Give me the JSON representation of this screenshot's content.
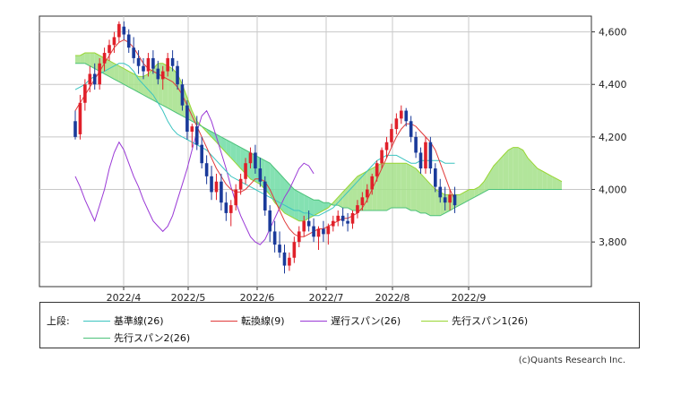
{
  "chart_data": {
    "type": "candlestick-ichimoku",
    "y_ticks": [
      3800,
      4000,
      4200,
      4400,
      4600
    ],
    "y_tick_labels": [
      "3,800",
      "4,000",
      "4,200",
      "4,400",
      "4,600"
    ],
    "x_tick_labels": [
      "2022/4",
      "2022/5",
      "2022/6",
      "2022/7",
      "2022/8",
      "2022/9"
    ],
    "ylim": [
      3630,
      4660
    ],
    "grid": true,
    "legend_prefix": "上段:",
    "legend": [
      {
        "label": "基準線(26)",
        "color": "#3cc4c0"
      },
      {
        "label": "転換線(9)",
        "color": "#e03a3a"
      },
      {
        "label": "遅行スパン(26)",
        "color": "#9a39d6"
      },
      {
        "label": "先行スパン1(26)",
        "color": "#99d633"
      },
      {
        "label": "先行スパン2(26)",
        "color": "#4cc27a"
      }
    ],
    "series_note": "Daily candles (values estimated from chart)",
    "candles": [
      [
        4260,
        4300,
        4190,
        4200
      ],
      [
        4210,
        4360,
        4190,
        4330
      ],
      [
        4330,
        4420,
        4300,
        4400
      ],
      [
        4400,
        4470,
        4370,
        4440
      ],
      [
        4440,
        4480,
        4380,
        4400
      ],
      [
        4400,
        4500,
        4380,
        4480
      ],
      [
        4480,
        4540,
        4450,
        4520
      ],
      [
        4520,
        4570,
        4490,
        4550
      ],
      [
        4550,
        4600,
        4520,
        4580
      ],
      [
        4580,
        4640,
        4560,
        4630
      ],
      [
        4620,
        4640,
        4570,
        4590
      ],
      [
        4590,
        4610,
        4520,
        4540
      ],
      [
        4540,
        4580,
        4480,
        4500
      ],
      [
        4500,
        4530,
        4440,
        4470
      ],
      [
        4470,
        4500,
        4420,
        4450
      ],
      [
        4450,
        4520,
        4430,
        4500
      ],
      [
        4500,
        4530,
        4440,
        4460
      ],
      [
        4460,
        4490,
        4400,
        4420
      ],
      [
        4420,
        4470,
        4380,
        4450
      ],
      [
        4450,
        4520,
        4430,
        4500
      ],
      [
        4500,
        4530,
        4450,
        4470
      ],
      [
        4470,
        4490,
        4380,
        4400
      ],
      [
        4400,
        4420,
        4300,
        4320
      ],
      [
        4320,
        4340,
        4190,
        4220
      ],
      [
        4220,
        4250,
        4160,
        4240
      ],
      [
        4240,
        4280,
        4150,
        4170
      ],
      [
        4170,
        4200,
        4080,
        4100
      ],
      [
        4100,
        4130,
        4020,
        4050
      ],
      [
        4050,
        4090,
        3960,
        3990
      ],
      [
        3990,
        4060,
        3960,
        4030
      ],
      [
        4030,
        4060,
        3920,
        3950
      ],
      [
        3950,
        3990,
        3880,
        3910
      ],
      [
        3910,
        3960,
        3860,
        3940
      ],
      [
        3940,
        4020,
        3920,
        4000
      ],
      [
        4000,
        4060,
        3980,
        4040
      ],
      [
        4040,
        4120,
        4020,
        4100
      ],
      [
        4100,
        4160,
        4080,
        4140
      ],
      [
        4140,
        4170,
        4060,
        4080
      ],
      [
        4080,
        4120,
        4010,
        4030
      ],
      [
        4030,
        4050,
        3900,
        3920
      ],
      [
        3920,
        3940,
        3800,
        3840
      ],
      [
        3840,
        3880,
        3760,
        3790
      ],
      [
        3790,
        3840,
        3740,
        3760
      ],
      [
        3760,
        3790,
        3680,
        3710
      ],
      [
        3710,
        3760,
        3690,
        3740
      ],
      [
        3740,
        3820,
        3720,
        3800
      ],
      [
        3800,
        3860,
        3780,
        3840
      ],
      [
        3840,
        3900,
        3820,
        3880
      ],
      [
        3880,
        3920,
        3840,
        3860
      ],
      [
        3860,
        3890,
        3800,
        3820
      ],
      [
        3820,
        3860,
        3770,
        3850
      ],
      [
        3850,
        3880,
        3800,
        3830
      ],
      [
        3830,
        3870,
        3790,
        3860
      ],
      [
        3860,
        3900,
        3840,
        3880
      ],
      [
        3880,
        3920,
        3860,
        3900
      ],
      [
        3900,
        3930,
        3860,
        3880
      ],
      [
        3880,
        3910,
        3840,
        3870
      ],
      [
        3870,
        3920,
        3850,
        3910
      ],
      [
        3910,
        3960,
        3890,
        3940
      ],
      [
        3940,
        3990,
        3920,
        3970
      ],
      [
        3970,
        4020,
        3950,
        4000
      ],
      [
        4000,
        4060,
        3980,
        4050
      ],
      [
        4050,
        4110,
        4030,
        4100
      ],
      [
        4100,
        4160,
        4080,
        4150
      ],
      [
        4150,
        4200,
        4120,
        4180
      ],
      [
        4180,
        4250,
        4160,
        4230
      ],
      [
        4230,
        4290,
        4210,
        4270
      ],
      [
        4270,
        4320,
        4250,
        4300
      ],
      [
        4300,
        4310,
        4240,
        4260
      ],
      [
        4260,
        4280,
        4180,
        4200
      ],
      [
        4200,
        4220,
        4120,
        4140
      ],
      [
        4140,
        4160,
        4060,
        4080
      ],
      [
        4080,
        4200,
        4060,
        4180
      ],
      [
        4180,
        4200,
        4060,
        4080
      ],
      [
        4080,
        4100,
        3990,
        4010
      ],
      [
        4010,
        4040,
        3950,
        3970
      ],
      [
        3970,
        4010,
        3920,
        3950
      ],
      [
        3950,
        4000,
        3920,
        3980
      ],
      [
        3980,
        4010,
        3910,
        3940
      ]
    ],
    "kijun": [
      4380,
      4390,
      4400,
      4420,
      4430,
      4440,
      4450,
      4460,
      4470,
      4480,
      4480,
      4470,
      4450,
      4420,
      4400,
      4380,
      4360,
      4330,
      4300,
      4260,
      4230,
      4210,
      4200,
      4190,
      4180,
      4170,
      4160,
      4150,
      4130,
      4110,
      4090,
      4070,
      4050,
      4040,
      4030,
      4020,
      4010,
      4000,
      3990,
      3980,
      3970,
      3960,
      3950,
      3940,
      3930,
      3920,
      3920,
      3910,
      3910,
      3900,
      3900,
      3910,
      3920,
      3930,
      3950,
      3970,
      3990,
      4010,
      4030,
      4050,
      4070,
      4090,
      4110,
      4120,
      4130,
      4130,
      4130,
      4120,
      4110,
      4100,
      4100,
      4110,
      4110,
      4110,
      4110,
      4110,
      4100,
      4100,
      4100
    ],
    "tenkan": [
      4300,
      4330,
      4360,
      4390,
      4420,
      4450,
      4480,
      4510,
      4540,
      4560,
      4570,
      4560,
      4540,
      4510,
      4480,
      4460,
      4450,
      4440,
      4430,
      4420,
      4410,
      4390,
      4360,
      4320,
      4280,
      4240,
      4200,
      4160,
      4120,
      4080,
      4050,
      4020,
      4000,
      3990,
      3990,
      4000,
      4020,
      4040,
      4040,
      4030,
      4000,
      3960,
      3920,
      3880,
      3850,
      3830,
      3820,
      3820,
      3830,
      3840,
      3850,
      3850,
      3860,
      3870,
      3880,
      3890,
      3890,
      3900,
      3910,
      3930,
      3960,
      4000,
      4040,
      4080,
      4120,
      4160,
      4200,
      4230,
      4250,
      4250,
      4240,
      4220,
      4200,
      4180,
      4150,
      4100,
      4050,
      4000,
      3960
    ],
    "chikou": [
      4050,
      4010,
      3960,
      3920,
      3880,
      3940,
      4000,
      4080,
      4140,
      4180,
      4150,
      4100,
      4050,
      4010,
      3960,
      3920,
      3880,
      3860,
      3840,
      3860,
      3900,
      3960,
      4020,
      4080,
      4150,
      4220,
      4280,
      4300,
      4260,
      4200,
      4140,
      4080,
      4010,
      3950,
      3900,
      3860,
      3820,
      3800,
      3790,
      3810,
      3850,
      3890,
      3930,
      3970,
      4000,
      4040,
      4080,
      4100,
      4090,
      4060
    ],
    "span1": [
      4510,
      4510,
      4520,
      4520,
      4520,
      4510,
      4500,
      4490,
      4480,
      4470,
      4460,
      4450,
      4440,
      4430,
      4430,
      4440,
      4460,
      4480,
      4480,
      4470,
      4460,
      4440,
      4400,
      4350,
      4300,
      4260,
      4240,
      4220,
      4200,
      4180,
      4160,
      4140,
      4120,
      4100,
      4080,
      4060,
      4040,
      4030,
      4020,
      4000,
      3980,
      3950,
      3930,
      3910,
      3900,
      3890,
      3880,
      3880,
      3890,
      3900,
      3910,
      3920,
      3930,
      3950,
      3970,
      3990,
      4010,
      4030,
      4050,
      4060,
      4070,
      4080,
      4090,
      4100,
      4100,
      4100,
      4100,
      4100,
      4100,
      4090,
      4080,
      4060,
      4040,
      4020,
      4000,
      3990,
      3980,
      3980,
      3980,
      3980,
      3990,
      4000,
      4000,
      4010,
      4030,
      4060,
      4090,
      4110,
      4130,
      4150,
      4160,
      4160,
      4150,
      4120,
      4100,
      4080,
      4070,
      4060,
      4050,
      4040,
      4030
    ],
    "span2": [
      4480,
      4480,
      4480,
      4470,
      4460,
      4450,
      4440,
      4430,
      4420,
      4410,
      4400,
      4390,
      4380,
      4370,
      4360,
      4350,
      4340,
      4330,
      4320,
      4310,
      4300,
      4290,
      4280,
      4270,
      4260,
      4250,
      4240,
      4230,
      4220,
      4210,
      4200,
      4190,
      4180,
      4170,
      4160,
      4150,
      4140,
      4130,
      4120,
      4110,
      4100,
      4080,
      4060,
      4040,
      4020,
      4000,
      3990,
      3980,
      3970,
      3960,
      3960,
      3950,
      3950,
      3940,
      3940,
      3930,
      3930,
      3920,
      3920,
      3920,
      3920,
      3920,
      3920,
      3920,
      3920,
      3930,
      3930,
      3930,
      3930,
      3920,
      3920,
      3910,
      3910,
      3900,
      3900,
      3900,
      3910,
      3920,
      3930,
      3940,
      3950,
      3960,
      3970,
      3980,
      3990,
      4000,
      4000,
      4000,
      4000,
      4000,
      4000,
      4000,
      4000,
      4000,
      4000,
      4000,
      4000,
      4000,
      4000,
      4000,
      4000
    ]
  },
  "credit": "(c)Quants Research Inc."
}
